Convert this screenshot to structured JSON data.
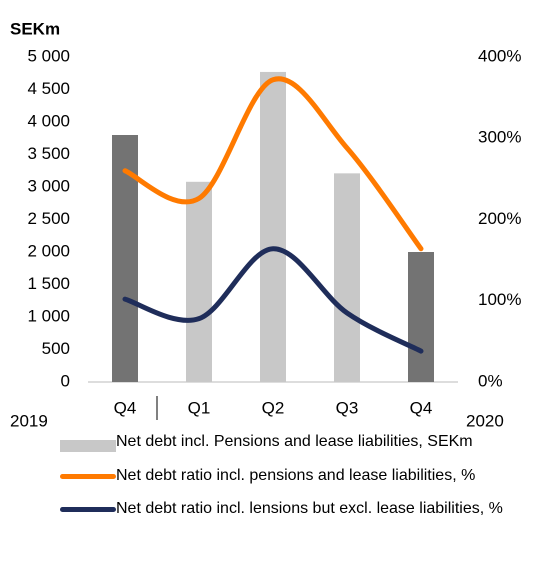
{
  "chart_data": {
    "type": "bar-line",
    "y_label": "SEKm",
    "annotations": [
      "2019",
      "2020"
    ],
    "categories": [
      "Q4",
      "Q1",
      "Q2",
      "Q3",
      "Q4"
    ],
    "series": [
      {
        "name": "Net debt incl. Pensions and lease liabilities, SEKm",
        "type": "bar",
        "color": "#c8c8c8",
        "colors": [
          "#737373",
          "#c8c8c8",
          "#c8c8c8",
          "#c8c8c8",
          "#737373"
        ],
        "values": [
          3800,
          3080,
          4770,
          3210,
          2000
        ]
      },
      {
        "name": "Net debt ratio incl. pensions and lease liabilities, %",
        "type": "line",
        "axis": "y2",
        "color": "#ff7a00",
        "values": [
          260,
          226,
          372,
          288,
          164
        ]
      },
      {
        "name": "Net debt ratio incl. lensions but excl. lease liabilities, %",
        "type": "line",
        "axis": "y2",
        "color": "#1f2d5a",
        "values": [
          102,
          78,
          164,
          85,
          38
        ]
      }
    ],
    "ylim": [
      0,
      5000
    ],
    "yticks": [
      0,
      500,
      {
        "value": 1000,
        "label": "1 000"
      },
      {
        "value": 1500,
        "label": "1 500"
      },
      {
        "value": 2000,
        "label": "2 000"
      },
      {
        "value": 2500,
        "label": "2 500"
      },
      {
        "value": 3000,
        "label": "3 000"
      },
      {
        "value": 3500,
        "label": "3 500"
      },
      {
        "value": 4000,
        "label": "4 000"
      },
      {
        "value": 4500,
        "label": "4 500"
      },
      {
        "value": 5000,
        "label": "5 000"
      }
    ],
    "y2lim": [
      0,
      400
    ],
    "y2ticks": [
      {
        "value": 0,
        "label": "0%"
      },
      {
        "value": 100,
        "label": "100%"
      },
      {
        "value": 200,
        "label": "200%"
      },
      {
        "value": 300,
        "label": "300%"
      },
      {
        "value": 400,
        "label": "400%"
      }
    ],
    "legend": "bottom"
  }
}
